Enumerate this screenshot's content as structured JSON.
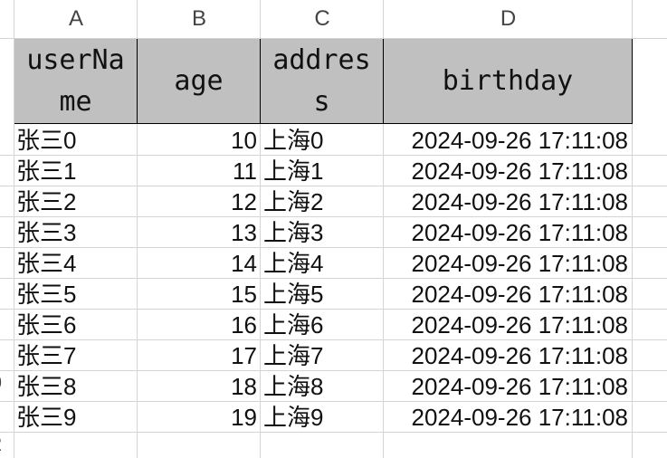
{
  "sheet": {
    "columns": [
      "A",
      "B",
      "C",
      "D"
    ],
    "row_numbers_visible": [
      "0",
      "2"
    ],
    "headers": [
      "userName",
      "age",
      "address",
      "birthday"
    ],
    "header_fill": "#c0c0c0",
    "rows": [
      {
        "userName": "张三0",
        "age": "10",
        "address": "上海0",
        "birthday": "2024-09-26 17:11:08"
      },
      {
        "userName": "张三1",
        "age": "11",
        "address": "上海1",
        "birthday": "2024-09-26 17:11:08"
      },
      {
        "userName": "张三2",
        "age": "12",
        "address": "上海2",
        "birthday": "2024-09-26 17:11:08"
      },
      {
        "userName": "张三3",
        "age": "13",
        "address": "上海3",
        "birthday": "2024-09-26 17:11:08"
      },
      {
        "userName": "张三4",
        "age": "14",
        "address": "上海4",
        "birthday": "2024-09-26 17:11:08"
      },
      {
        "userName": "张三5",
        "age": "15",
        "address": "上海5",
        "birthday": "2024-09-26 17:11:08"
      },
      {
        "userName": "张三6",
        "age": "16",
        "address": "上海6",
        "birthday": "2024-09-26 17:11:08"
      },
      {
        "userName": "张三7",
        "age": "17",
        "address": "上海7",
        "birthday": "2024-09-26 17:11:08"
      },
      {
        "userName": "张三8",
        "age": "18",
        "address": "上海8",
        "birthday": "2024-09-26 17:11:08"
      },
      {
        "userName": "张三9",
        "age": "19",
        "address": "上海9",
        "birthday": "2024-09-26 17:11:08"
      }
    ]
  }
}
